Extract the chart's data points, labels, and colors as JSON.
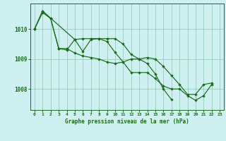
{
  "title": "Graphe pression niveau de la mer (hPa)",
  "bg_color": "#cff0f0",
  "grid_color": "#99ccbb",
  "line_color": "#1a6b1a",
  "marker_color": "#1a6b1a",
  "xlim": [
    -0.5,
    23.5
  ],
  "ylim": [
    1007.3,
    1010.85
  ],
  "yticks": [
    1008,
    1009,
    1010
  ],
  "xticks": [
    0,
    1,
    2,
    3,
    4,
    5,
    6,
    7,
    8,
    9,
    10,
    11,
    12,
    13,
    14,
    15,
    16,
    17,
    18,
    19,
    20,
    21,
    22,
    23
  ],
  "s1": [
    1010.0,
    1010.55,
    1010.35,
    1009.35,
    1009.35,
    1009.2,
    1009.1,
    1009.05,
    1009.0,
    1008.9,
    1008.85,
    1008.9,
    1009.0,
    1009.0,
    1009.05,
    1009.0,
    1008.75,
    1008.45,
    1008.15,
    1007.82,
    1007.82,
    1008.15,
    1008.2,
    null
  ],
  "s2": [
    1010.0,
    1010.6,
    1010.35,
    1009.35,
    1009.3,
    1009.65,
    1009.68,
    1009.68,
    1009.68,
    1009.68,
    1009.68,
    1009.5,
    1009.15,
    1009.0,
    1008.85,
    1008.5,
    1008.0,
    1007.65,
    null,
    null,
    null,
    null,
    null,
    null
  ],
  "s3": [
    1010.0,
    1010.6,
    null,
    null,
    null,
    1009.65,
    1009.25,
    1009.65,
    1009.68,
    1009.58,
    1009.22,
    1008.9,
    1008.55,
    1008.55,
    1008.55,
    1008.35,
    1008.1,
    1008.0,
    1008.0,
    1007.78,
    1007.62,
    1007.78,
    1008.15,
    null
  ]
}
